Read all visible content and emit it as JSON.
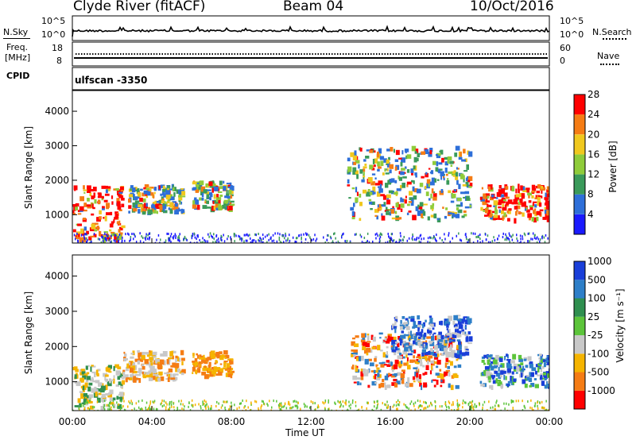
{
  "header": {
    "site": "Clyde River (fitACF)",
    "beam": "Beam 04",
    "date": "10/Oct/2016",
    "program": "ulfscan  -3350"
  },
  "top_panels": {
    "nsky_label": "N.Sky",
    "nsky_top": "10^5",
    "nsky_bottom": "10^0",
    "nsearch_label": "N.Search",
    "nsearch_top": "10^5",
    "nsearch_bottom": "10^0",
    "freq_label_1": "Freq.",
    "freq_label_2": "[MHz]",
    "freq_top": "18",
    "freq_bottom": "8",
    "nave_label": "Nave",
    "nave_top": "60",
    "nave_bottom": "0",
    "cpid_label": "CPID"
  },
  "chart_data": [
    {
      "type": "heatmap",
      "title": "",
      "ylabel": "Slant Range [km]",
      "ylim": [
        180,
        4600
      ],
      "yticks": [
        1000,
        2000,
        3000,
        4000
      ],
      "colorbar_label": "Power [dB]",
      "colorbar_ticks": [
        "4",
        "8",
        "12",
        "16",
        "20",
        "24",
        "28"
      ],
      "colorbar_colors": [
        "#1a1aff",
        "#2e6fd9",
        "#3a9a5a",
        "#8fcc3a",
        "#f0c81e",
        "#f57c14",
        "#ff0000"
      ],
      "scatter_regions": [
        {
          "t": [
            0.0,
            2.5
          ],
          "range": [
            300,
            1900
          ],
          "level": "strong"
        },
        {
          "t": [
            2.8,
            5.5
          ],
          "range": [
            1100,
            1900
          ],
          "level": "medium"
        },
        {
          "t": [
            6.0,
            8.0
          ],
          "range": [
            1200,
            2000
          ],
          "level": "medium"
        },
        {
          "t": [
            13.8,
            20.0
          ],
          "range": [
            900,
            3000
          ],
          "level": "medium"
        },
        {
          "t": [
            20.5,
            24.0
          ],
          "range": [
            900,
            1900
          ],
          "level": "strong"
        }
      ]
    },
    {
      "type": "heatmap",
      "title": "",
      "xlabel": "Time UT",
      "ylabel": "Slant Range [km]",
      "ylim": [
        180,
        4600
      ],
      "yticks": [
        1000,
        2000,
        3000,
        4000
      ],
      "xticks": [
        "00:00",
        "04:00",
        "08:00",
        "12:00",
        "16:00",
        "20:00",
        "00:00"
      ],
      "colorbar_label": "Velocity [m s⁻¹]",
      "colorbar_ticks": [
        "1000",
        "500",
        "100",
        "25",
        "-25",
        "-100",
        "-500",
        "-1000"
      ],
      "colorbar_colors": [
        "#1a3fd9",
        "#2e7fc8",
        "#2f8f4f",
        "#5cc43a",
        "#c8c8c8",
        "#f5b400",
        "#f57c14",
        "#ff0000"
      ]
    }
  ]
}
